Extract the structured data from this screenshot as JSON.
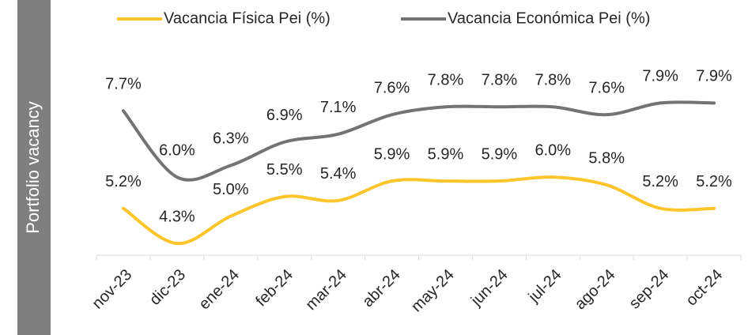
{
  "chart_data": {
    "type": "line",
    "ylabel": "Portfolio vacancy",
    "categories": [
      "nov-23",
      "dic-23",
      "ene-24",
      "feb-24",
      "mar-24",
      "abr-24",
      "may-24",
      "jun-24",
      "jul-24",
      "ago-24",
      "sep-24",
      "oct-24"
    ],
    "series": [
      {
        "name": "Vacancia Física Pei (%)",
        "color": "#fcc52b",
        "values": [
          5.2,
          4.3,
          5.0,
          5.5,
          5.4,
          5.9,
          5.9,
          5.9,
          6.0,
          5.8,
          5.2,
          5.2
        ],
        "value_labels": [
          "5.2%",
          "4.3%",
          "5.0%",
          "5.5%",
          "5.4%",
          "5.9%",
          "5.9%",
          "5.9%",
          "6.0%",
          "5.8%",
          "5.2%",
          "5.2%"
        ]
      },
      {
        "name": "Vacancia Económica Pei (%)",
        "color": "#737373",
        "values": [
          7.7,
          6.0,
          6.3,
          6.9,
          7.1,
          7.6,
          7.8,
          7.8,
          7.8,
          7.6,
          7.9,
          7.9
        ],
        "value_labels": [
          "7.7%",
          "6.0%",
          "6.3%",
          "6.9%",
          "7.1%",
          "7.6%",
          "7.8%",
          "7.8%",
          "7.8%",
          "7.6%",
          "7.9%",
          "7.9%"
        ]
      }
    ],
    "ylim": [
      4,
      9
    ]
  }
}
